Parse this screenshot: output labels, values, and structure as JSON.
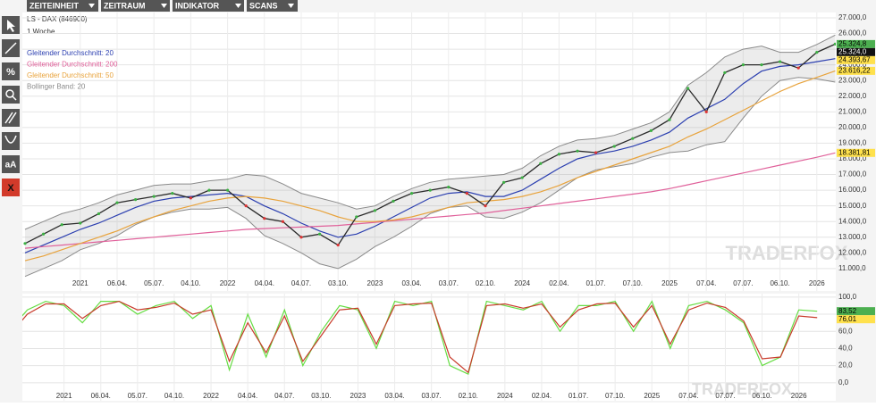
{
  "toolbar": {
    "menus": [
      "ZEITEINHEIT",
      "ZEITRAUM",
      "INDIKATOR",
      "SCANS"
    ],
    "side_tools": [
      "%",
      "aA",
      "X"
    ]
  },
  "watermark": "TRADERFOX",
  "chart_data": [
    {
      "type": "line",
      "title": "LS - DAX (846900)",
      "subtitle": "1 Woche",
      "categories": [
        null,
        null,
        null,
        "2021",
        null,
        "06.04.",
        null,
        "05.07.",
        null,
        "04.10.",
        null,
        "2022",
        null,
        "04.04.",
        null,
        "04.07.",
        null,
        "03.10.",
        null,
        "2023",
        null,
        "03.04.",
        null,
        "03.07.",
        null,
        "02.10.",
        null,
        "2024",
        null,
        "02.04.",
        null,
        "01.07.",
        null,
        "07.10.",
        null,
        "2025",
        null,
        "07.04.",
        null,
        "07.07.",
        null,
        "06.10.",
        null,
        "2026",
        null
      ],
      "price": {
        "color": "#2a2a2a",
        "values": [
          12600,
          13200,
          13800,
          13900,
          14500,
          15200,
          15400,
          15600,
          15800,
          15500,
          16000,
          16000,
          15000,
          14200,
          14000,
          13000,
          13200,
          12500,
          14300,
          14700,
          15300,
          15800,
          16000,
          16200,
          15800,
          15000,
          16500,
          16800,
          17700,
          18300,
          18500,
          18400,
          18800,
          19300,
          19800,
          20500,
          22500,
          21000,
          23500,
          24000,
          24000,
          24200,
          23800,
          24800,
          25324
        ]
      },
      "series": [
        {
          "name": "Gleitender Durchschnitt: 20",
          "color": "#2b3fb0",
          "values": [
            12000,
            12500,
            13000,
            13500,
            13900,
            14400,
            14900,
            15300,
            15500,
            15600,
            15700,
            15800,
            15600,
            15000,
            14500,
            13900,
            13400,
            13000,
            13200,
            13700,
            14300,
            14900,
            15500,
            15800,
            15900,
            15600,
            15600,
            16000,
            16700,
            17400,
            18000,
            18300,
            18500,
            18800,
            19200,
            19700,
            20600,
            21200,
            21800,
            22800,
            23600,
            23900,
            24000,
            24200,
            24394
          ]
        },
        {
          "name": "Gleitender Durchschnitt: 200",
          "color": "#e0609a",
          "values": [
            12300,
            12400,
            12500,
            12600,
            12700,
            12800,
            12900,
            13000,
            13100,
            13200,
            13300,
            13400,
            13500,
            13550,
            13600,
            13650,
            13700,
            13750,
            13850,
            13950,
            14050,
            14150,
            14250,
            14350,
            14450,
            14550,
            14700,
            14850,
            15000,
            15150,
            15300,
            15450,
            15600,
            15750,
            15900,
            16100,
            16350,
            16600,
            16850,
            17100,
            17350,
            17600,
            17850,
            18100,
            18382
          ]
        },
        {
          "name": "Gleitender Durchschnitt: 50",
          "color": "#e8a33c",
          "values": [
            11500,
            11800,
            12200,
            12600,
            13000,
            13400,
            13900,
            14300,
            14700,
            15000,
            15300,
            15500,
            15600,
            15500,
            15300,
            15000,
            14700,
            14300,
            14000,
            14000,
            14100,
            14300,
            14600,
            14900,
            15200,
            15300,
            15400,
            15600,
            15900,
            16300,
            16800,
            17200,
            17600,
            18000,
            18400,
            18800,
            19400,
            19900,
            20500,
            21100,
            21700,
            22300,
            22800,
            23200,
            23616
          ]
        }
      ],
      "bands": [
        {
          "name": "Bollinger Band: 20",
          "color": "#8a8a8a",
          "upper": [
            13500,
            14000,
            14500,
            14800,
            15200,
            15700,
            16000,
            16300,
            16400,
            16400,
            16600,
            16700,
            17000,
            16900,
            16400,
            15800,
            15500,
            15200,
            14800,
            15000,
            15600,
            16100,
            16500,
            16700,
            16800,
            16900,
            17000,
            17400,
            18200,
            18800,
            19200,
            19300,
            19500,
            19900,
            20300,
            21000,
            22700,
            23500,
            24500,
            25000,
            25200,
            24800,
            24800,
            25300,
            25900
          ],
          "lower": [
            10500,
            11000,
            11500,
            12200,
            12600,
            13100,
            13800,
            14300,
            14600,
            14800,
            14800,
            14900,
            14200,
            13100,
            12600,
            12000,
            11300,
            11000,
            11600,
            12400,
            13000,
            13700,
            14500,
            14900,
            15000,
            14300,
            14200,
            14600,
            15200,
            16000,
            16800,
            17300,
            17500,
            17700,
            18100,
            18400,
            18500,
            18900,
            19100,
            20600,
            22000,
            23000,
            23200,
            23100,
            22900
          ]
        }
      ],
      "ylim": [
        9570,
        27340
      ],
      "yticks": [
        {
          "value": 27000,
          "label": "27.000,0"
        },
        {
          "value": 26000,
          "label": "26.000,0"
        },
        {
          "value": 25000,
          "label": "25.000,0"
        },
        {
          "value": 24000,
          "label": "24.000,0"
        },
        {
          "value": 23000,
          "label": "23.000,0"
        },
        {
          "value": 22000,
          "label": "22.000,0"
        },
        {
          "value": 21000,
          "label": "21.000,0"
        },
        {
          "value": 20000,
          "label": "20.000,0"
        },
        {
          "value": 19000,
          "label": "19.000,0"
        },
        {
          "value": 18000,
          "label": "18.000,0"
        },
        {
          "value": 17000,
          "label": "17.000,0"
        },
        {
          "value": 16000,
          "label": "16.000,0"
        },
        {
          "value": 15000,
          "label": "15.000,0"
        },
        {
          "value": 14000,
          "label": "14.000,0"
        },
        {
          "value": 13000,
          "label": "13.000,0"
        },
        {
          "value": 12000,
          "label": "12.000,0"
        },
        {
          "value": 11000,
          "label": "11.000,0"
        }
      ],
      "price_labels": [
        {
          "value": 25324.8,
          "label": "25.324,8",
          "color": "#4caf50"
        },
        {
          "value": 25324.0,
          "label": "25.324,0",
          "color": "#111111"
        },
        {
          "value": 24393.67,
          "label": "24.393,67",
          "color": "#ffe14d"
        },
        {
          "value": 23616.22,
          "label": "23.616,22",
          "color": "#ffe14d"
        },
        {
          "value": 18381.81,
          "label": "18.381,81",
          "color": "#ffe14d"
        }
      ],
      "grid": true
    },
    {
      "type": "line",
      "categories": [
        null,
        null,
        null,
        "2021",
        null,
        "06.04.",
        null,
        "05.07.",
        null,
        "04.10.",
        null,
        "2022",
        null,
        "04.04.",
        null,
        "04.07.",
        null,
        "03.10.",
        null,
        "2023",
        null,
        "03.04.",
        null,
        "03.07.",
        null,
        "02.10.",
        null,
        "2024",
        null,
        "02.04.",
        null,
        "01.07.",
        null,
        "07.10.",
        null,
        "2025",
        null,
        "07.04.",
        null,
        "07.07.",
        null,
        "06.10.",
        null,
        "2026",
        null
      ],
      "series": [
        {
          "color": "#66dd44",
          "values": [
            60,
            85,
            95,
            90,
            70,
            95,
            95,
            80,
            90,
            95,
            75,
            90,
            15,
            80,
            30,
            85,
            20,
            60,
            90,
            85,
            40,
            95,
            90,
            95,
            20,
            10,
            95,
            90,
            85,
            95,
            60,
            90,
            90,
            95,
            60,
            95,
            40,
            90,
            95,
            85,
            70,
            20,
            30,
            85,
            83.52
          ]
        },
        {
          "color": "#c83a2a",
          "values": [
            55,
            80,
            92,
            92,
            75,
            90,
            95,
            85,
            88,
            93,
            80,
            85,
            25,
            70,
            35,
            78,
            25,
            55,
            85,
            87,
            45,
            90,
            92,
            93,
            30,
            12,
            90,
            92,
            87,
            92,
            65,
            85,
            92,
            93,
            65,
            90,
            45,
            85,
            93,
            88,
            72,
            28,
            30,
            78,
            76.01
          ]
        }
      ],
      "ylim": [
        -21,
        104
      ],
      "yticks": [
        {
          "value": 100,
          "label": "100,0"
        },
        {
          "value": 80,
          "label": "80,0"
        },
        {
          "value": 60,
          "label": "60,0"
        },
        {
          "value": 40,
          "label": "40,0"
        },
        {
          "value": 20,
          "label": "20,0"
        },
        {
          "value": 0,
          "label": "0,0"
        }
      ],
      "price_labels": [
        {
          "value": 83.52,
          "label": "83,52",
          "color": "#4caf50"
        },
        {
          "value": 76.01,
          "label": "76,01",
          "color": "#ffe14d"
        }
      ],
      "grid": true
    }
  ]
}
